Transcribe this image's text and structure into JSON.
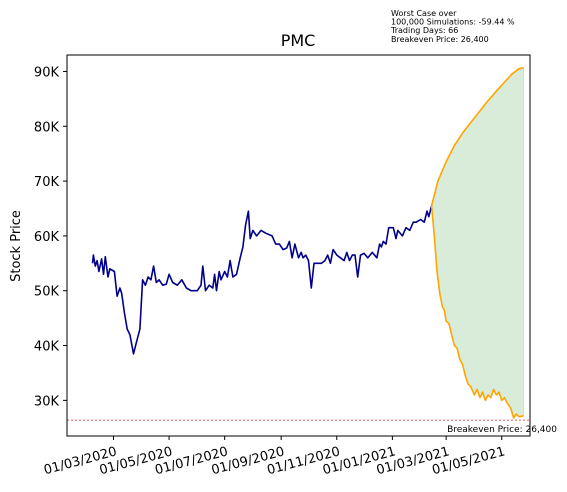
{
  "chart_data": {
    "type": "line",
    "title": "PMC",
    "xlabel": "",
    "ylabel": "Stock Price",
    "xlim": [
      "2020-01-10",
      "2021-06-01"
    ],
    "ylim": [
      23500,
      93000
    ],
    "x_ticks": [
      "01/03/2020",
      "01/05/2020",
      "01/07/2020",
      "01/09/2020",
      "01/11/2020",
      "01/01/2021",
      "01/03/2021",
      "01/05/2021"
    ],
    "y_ticks": [
      {
        "value": 30000,
        "label": "30K"
      },
      {
        "value": 40000,
        "label": "40K"
      },
      {
        "value": 50000,
        "label": "50K"
      },
      {
        "value": 60000,
        "label": "60K"
      },
      {
        "value": 70000,
        "label": "70K"
      },
      {
        "value": 80000,
        "label": "80K"
      },
      {
        "value": 90000,
        "label": "90K"
      }
    ],
    "annotation": {
      "lines": [
        "Worst Case over",
        "100,000 Simulations: -59.44 %",
        "Trading Days: 66",
        "Breakeven Price: 26,400"
      ]
    },
    "breakeven": {
      "value": 26400,
      "label": "Breakeven Price: 26,400",
      "color": "#d62728"
    },
    "series": [
      {
        "color": "#00008b",
        "points": [
          [
            "2020-02-07",
            55000
          ],
          [
            "2020-02-08",
            56500
          ],
          [
            "2020-02-10",
            54500
          ],
          [
            "2020-02-12",
            55500
          ],
          [
            "2020-02-14",
            53500
          ],
          [
            "2020-02-17",
            55800
          ],
          [
            "2020-02-19",
            53000
          ],
          [
            "2020-02-21",
            56200
          ],
          [
            "2020-02-24",
            52500
          ],
          [
            "2020-02-26",
            54000
          ],
          [
            "2020-03-02",
            53500
          ],
          [
            "2020-03-05",
            49000
          ],
          [
            "2020-03-08",
            50500
          ],
          [
            "2020-03-10",
            49500
          ],
          [
            "2020-03-13",
            46000
          ],
          [
            "2020-03-16",
            43000
          ],
          [
            "2020-03-19",
            42000
          ],
          [
            "2020-03-23",
            38500
          ],
          [
            "2020-03-26",
            40500
          ],
          [
            "2020-03-30",
            43000
          ],
          [
            "2020-04-02",
            52000
          ],
          [
            "2020-04-05",
            51000
          ],
          [
            "2020-04-08",
            52500
          ],
          [
            "2020-04-11",
            52000
          ],
          [
            "2020-04-14",
            54500
          ],
          [
            "2020-04-17",
            51500
          ],
          [
            "2020-04-20",
            52000
          ],
          [
            "2020-04-24",
            51000
          ],
          [
            "2020-04-28",
            51200
          ],
          [
            "2020-05-01",
            53000
          ],
          [
            "2020-05-05",
            51500
          ],
          [
            "2020-05-10",
            51000
          ],
          [
            "2020-05-15",
            52000
          ],
          [
            "2020-05-20",
            50500
          ],
          [
            "2020-05-25",
            50000
          ],
          [
            "2020-06-01",
            50000
          ],
          [
            "2020-06-05",
            51000
          ],
          [
            "2020-06-07",
            54500
          ],
          [
            "2020-06-10",
            50000
          ],
          [
            "2020-06-14",
            51000
          ],
          [
            "2020-06-18",
            50500
          ],
          [
            "2020-06-20",
            53000
          ],
          [
            "2020-06-22",
            50000
          ],
          [
            "2020-06-25",
            53500
          ],
          [
            "2020-06-27",
            52000
          ],
          [
            "2020-07-01",
            53500
          ],
          [
            "2020-07-04",
            52500
          ],
          [
            "2020-07-07",
            55500
          ],
          [
            "2020-07-10",
            52500
          ],
          [
            "2020-07-14",
            53000
          ],
          [
            "2020-07-18",
            56000
          ],
          [
            "2020-07-21",
            58000
          ],
          [
            "2020-07-24",
            62000
          ],
          [
            "2020-07-27",
            64500
          ],
          [
            "2020-07-29",
            59500
          ],
          [
            "2020-08-01",
            61000
          ],
          [
            "2020-08-05",
            60000
          ],
          [
            "2020-08-10",
            61000
          ],
          [
            "2020-08-15",
            60500
          ],
          [
            "2020-08-22",
            60000
          ],
          [
            "2020-08-26",
            58500
          ],
          [
            "2020-08-30",
            58500
          ],
          [
            "2020-09-03",
            57500
          ],
          [
            "2020-09-07",
            57800
          ],
          [
            "2020-09-10",
            59000
          ],
          [
            "2020-09-13",
            56000
          ],
          [
            "2020-09-16",
            58500
          ],
          [
            "2020-09-20",
            56000
          ],
          [
            "2020-09-23",
            57000
          ],
          [
            "2020-09-25",
            56000
          ],
          [
            "2020-09-28",
            56500
          ],
          [
            "2020-10-01",
            55500
          ],
          [
            "2020-10-04",
            50500
          ],
          [
            "2020-10-07",
            55000
          ],
          [
            "2020-10-11",
            55000
          ],
          [
            "2020-10-15",
            55000
          ],
          [
            "2020-10-19",
            55500
          ],
          [
            "2020-10-22",
            56500
          ],
          [
            "2020-10-25",
            55000
          ],
          [
            "2020-10-28",
            57500
          ],
          [
            "2020-11-01",
            56500
          ],
          [
            "2020-11-05",
            56000
          ],
          [
            "2020-11-09",
            55500
          ],
          [
            "2020-11-12",
            57000
          ],
          [
            "2020-11-15",
            55500
          ],
          [
            "2020-11-18",
            56500
          ],
          [
            "2020-11-21",
            56500
          ],
          [
            "2020-11-24",
            52500
          ],
          [
            "2020-11-27",
            56500
          ],
          [
            "2020-12-01",
            56800
          ],
          [
            "2020-12-05",
            56000
          ],
          [
            "2020-12-10",
            57000
          ],
          [
            "2020-12-15",
            56000
          ],
          [
            "2020-12-18",
            58500
          ],
          [
            "2020-12-20",
            58000
          ],
          [
            "2020-12-22",
            59000
          ],
          [
            "2020-12-25",
            58500
          ],
          [
            "2020-12-28",
            61500
          ],
          [
            "2021-01-02",
            61500
          ],
          [
            "2021-01-05",
            59500
          ],
          [
            "2021-01-07",
            61000
          ],
          [
            "2021-01-12",
            60000
          ],
          [
            "2021-01-16",
            61500
          ],
          [
            "2021-01-20",
            61000
          ],
          [
            "2021-01-24",
            62500
          ],
          [
            "2021-01-27",
            62500
          ],
          [
            "2021-02-01",
            63000
          ],
          [
            "2021-02-05",
            62500
          ],
          [
            "2021-02-08",
            64500
          ],
          [
            "2021-02-10",
            63500
          ],
          [
            "2021-02-13",
            65500
          ]
        ]
      },
      {
        "color": "#ffa500",
        "points": [
          [
            "2021-02-13",
            65500
          ],
          [
            "2021-02-20",
            70000
          ],
          [
            "2021-03-01",
            73500
          ],
          [
            "2021-03-10",
            76500
          ],
          [
            "2021-03-20",
            79000
          ],
          [
            "2021-04-01",
            81500
          ],
          [
            "2021-04-15",
            84500
          ],
          [
            "2021-05-01",
            87500
          ],
          [
            "2021-05-12",
            89500
          ],
          [
            "2021-05-20",
            90500
          ],
          [
            "2021-05-25",
            90700
          ]
        ]
      },
      {
        "color": "#ffa500",
        "points": [
          [
            "2021-02-13",
            65500
          ],
          [
            "2021-02-16",
            60000
          ],
          [
            "2021-02-19",
            53500
          ],
          [
            "2021-02-22",
            49500
          ],
          [
            "2021-02-25",
            47000
          ],
          [
            "2021-02-27",
            46500
          ],
          [
            "2021-03-01",
            44500
          ],
          [
            "2021-03-04",
            44000
          ],
          [
            "2021-03-07",
            42000
          ],
          [
            "2021-03-10",
            40000
          ],
          [
            "2021-03-13",
            39500
          ],
          [
            "2021-03-16",
            37500
          ],
          [
            "2021-03-19",
            36500
          ],
          [
            "2021-03-22",
            34500
          ],
          [
            "2021-03-25",
            33000
          ],
          [
            "2021-03-28",
            32500
          ],
          [
            "2021-04-01",
            31000
          ],
          [
            "2021-04-04",
            32000
          ],
          [
            "2021-04-07",
            30500
          ],
          [
            "2021-04-10",
            31500
          ],
          [
            "2021-04-13",
            30000
          ],
          [
            "2021-04-16",
            31000
          ],
          [
            "2021-04-19",
            30500
          ],
          [
            "2021-04-22",
            32000
          ],
          [
            "2021-04-25",
            31000
          ],
          [
            "2021-04-28",
            31500
          ],
          [
            "2021-05-01",
            30000
          ],
          [
            "2021-05-04",
            30500
          ],
          [
            "2021-05-07",
            29500
          ],
          [
            "2021-05-11",
            28500
          ],
          [
            "2021-05-14",
            26800
          ],
          [
            "2021-05-17",
            27500
          ],
          [
            "2021-05-20",
            27000
          ],
          [
            "2021-05-25",
            27200
          ]
        ]
      }
    ],
    "fill_between": {
      "color": "#d9ecd9",
      "upper_series": 1,
      "lower_series": 2
    },
    "legend": "none",
    "grid": false
  }
}
